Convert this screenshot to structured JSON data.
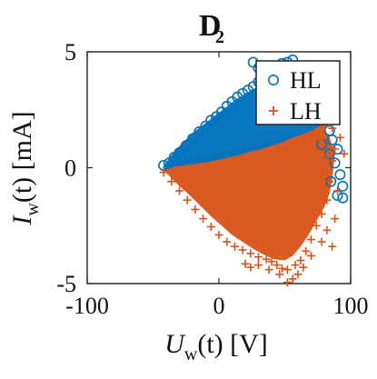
{
  "chart_data": {
    "type": "scatter",
    "title": "D",
    "title_subscript": "2",
    "xlabel": {
      "symbol": "U",
      "subscript": "w",
      "suffix": "(t)  [V]"
    },
    "ylabel": {
      "symbol": "I",
      "subscript": "w",
      "suffix": "(t)  [mA]"
    },
    "xlim": [
      -100,
      100
    ],
    "ylim": [
      -5,
      5
    ],
    "xticks": [
      -100,
      0,
      100
    ],
    "yticks": [
      -5,
      0,
      5
    ],
    "grid": false,
    "legend_position": "top-right",
    "series": [
      {
        "name": "HL",
        "marker": "circle",
        "color": "#0072BD",
        "points": [
          [
            -42,
            0.1
          ],
          [
            -38,
            0.2
          ],
          [
            -34,
            0.45
          ],
          [
            -30,
            0.65
          ],
          [
            -25,
            0.95
          ],
          [
            -20,
            1.25
          ],
          [
            -15,
            1.55
          ],
          [
            -10,
            1.8
          ],
          [
            -6,
            2.05
          ],
          [
            -2,
            2.2
          ],
          [
            2,
            2.4
          ],
          [
            6,
            2.65
          ],
          [
            10,
            2.85
          ],
          [
            14,
            3.05
          ],
          [
            18,
            3.2
          ],
          [
            22,
            3.35
          ],
          [
            26,
            3.5
          ],
          [
            30,
            3.7
          ],
          [
            34,
            3.8
          ],
          [
            38,
            3.9
          ],
          [
            42,
            3.95
          ],
          [
            46,
            4.0
          ],
          [
            50,
            4.05
          ],
          [
            54,
            4.1
          ],
          [
            56,
            4.65
          ],
          [
            26,
            4.55
          ],
          [
            30,
            4.3
          ],
          [
            34,
            4.2
          ],
          [
            38,
            4.25
          ],
          [
            44,
            4.35
          ],
          [
            48,
            4.5
          ],
          [
            52,
            4.55
          ],
          [
            60,
            4.3
          ],
          [
            62,
            3.7
          ],
          [
            66,
            3.4
          ],
          [
            70,
            3.0
          ],
          [
            74,
            2.6
          ],
          [
            78,
            2.3
          ],
          [
            80,
            2.0
          ],
          [
            84,
            1.6
          ],
          [
            86,
            1.2
          ],
          [
            90,
            0.8
          ],
          [
            92,
            -0.3
          ],
          [
            94,
            -0.8
          ],
          [
            90,
            -1.2
          ],
          [
            94,
            -1.3
          ],
          [
            85,
            -0.6
          ],
          [
            78,
            1.0
          ],
          [
            84,
            0.6
          ],
          [
            88,
            0.2
          ]
        ]
      },
      {
        "name": "LH",
        "marker": "plus",
        "color": "#D95319",
        "points": [
          [
            -42,
            -0.2
          ],
          [
            -36,
            -0.6
          ],
          [
            -30,
            -1.0
          ],
          [
            -24,
            -1.4
          ],
          [
            -18,
            -1.8
          ],
          [
            -12,
            -2.2
          ],
          [
            -6,
            -2.55
          ],
          [
            0,
            -2.9
          ],
          [
            6,
            -3.2
          ],
          [
            12,
            -3.4
          ],
          [
            18,
            -3.55
          ],
          [
            24,
            -3.7
          ],
          [
            30,
            -3.85
          ],
          [
            36,
            -3.95
          ],
          [
            40,
            -4.05
          ],
          [
            44,
            -4.2
          ],
          [
            48,
            -4.35
          ],
          [
            52,
            -4.4
          ],
          [
            58,
            -4.2
          ],
          [
            62,
            -4.0
          ],
          [
            66,
            -3.6
          ],
          [
            70,
            -3.1
          ],
          [
            74,
            -2.5
          ],
          [
            78,
            -2.0
          ],
          [
            82,
            -1.4
          ],
          [
            84,
            -0.6
          ],
          [
            86,
            0.3
          ],
          [
            88,
            0.8
          ],
          [
            92,
            1.3
          ],
          [
            86,
            1.7
          ],
          [
            80,
            1.8
          ],
          [
            76,
            1.2
          ],
          [
            90,
            -1.0
          ],
          [
            95,
            0.6
          ],
          [
            88,
            -2.2
          ],
          [
            82,
            -2.7
          ],
          [
            78,
            -3.2
          ],
          [
            70,
            -3.8
          ],
          [
            64,
            -4.3
          ],
          [
            56,
            -4.8
          ],
          [
            46,
            -4.6
          ],
          [
            38,
            -4.4
          ],
          [
            30,
            -4.2
          ],
          [
            24,
            -4.3
          ],
          [
            20,
            -4.15
          ],
          [
            52,
            -4.95
          ],
          [
            60,
            -4.6
          ],
          [
            86,
            -3.4
          ],
          [
            80,
            0.4
          ],
          [
            70,
            1.4
          ]
        ]
      }
    ],
    "hl_region": [
      [
        -43,
        0.0
      ],
      [
        -36,
        0.55
      ],
      [
        -28,
        1.05
      ],
      [
        -20,
        1.5
      ],
      [
        -12,
        1.85
      ],
      [
        -4,
        2.2
      ],
      [
        4,
        2.55
      ],
      [
        12,
        2.9
      ],
      [
        20,
        3.2
      ],
      [
        28,
        3.45
      ],
      [
        36,
        3.65
      ],
      [
        44,
        3.9
      ],
      [
        52,
        4.0
      ],
      [
        58,
        3.8
      ],
      [
        62,
        3.4
      ],
      [
        66,
        3.0
      ],
      [
        70,
        2.65
      ],
      [
        74,
        2.25
      ],
      [
        78,
        1.85
      ],
      [
        72,
        1.65
      ],
      [
        64,
        1.45
      ],
      [
        56,
        1.3
      ],
      [
        48,
        1.1
      ],
      [
        40,
        0.95
      ],
      [
        32,
        0.8
      ],
      [
        24,
        0.7
      ],
      [
        16,
        0.55
      ],
      [
        8,
        0.45
      ],
      [
        0,
        0.35
      ],
      [
        -8,
        0.25
      ],
      [
        -16,
        0.18
      ],
      [
        -24,
        0.12
      ],
      [
        -32,
        0.06
      ],
      [
        -40,
        0.02
      ]
    ],
    "lh_region": [
      [
        -43,
        -0.05
      ],
      [
        -40,
        0.1
      ],
      [
        -30,
        0.28
      ],
      [
        -18,
        0.45
      ],
      [
        -6,
        0.6
      ],
      [
        6,
        0.72
      ],
      [
        18,
        0.85
      ],
      [
        30,
        1.0
      ],
      [
        42,
        1.18
      ],
      [
        54,
        1.36
      ],
      [
        64,
        1.52
      ],
      [
        72,
        1.72
      ],
      [
        78,
        1.9
      ],
      [
        84,
        1.3
      ],
      [
        88,
        0.6
      ],
      [
        86,
        -0.5
      ],
      [
        84,
        -1.1
      ],
      [
        80,
        -1.7
      ],
      [
        74,
        -2.3
      ],
      [
        68,
        -2.9
      ],
      [
        62,
        -3.4
      ],
      [
        56,
        -3.8
      ],
      [
        50,
        -4.0
      ],
      [
        42,
        -3.95
      ],
      [
        34,
        -3.75
      ],
      [
        26,
        -3.5
      ],
      [
        18,
        -3.2
      ],
      [
        10,
        -2.9
      ],
      [
        2,
        -2.5
      ],
      [
        -6,
        -2.1
      ],
      [
        -14,
        -1.65
      ],
      [
        -22,
        -1.2
      ],
      [
        -30,
        -0.8
      ],
      [
        -36,
        -0.45
      ]
    ]
  }
}
